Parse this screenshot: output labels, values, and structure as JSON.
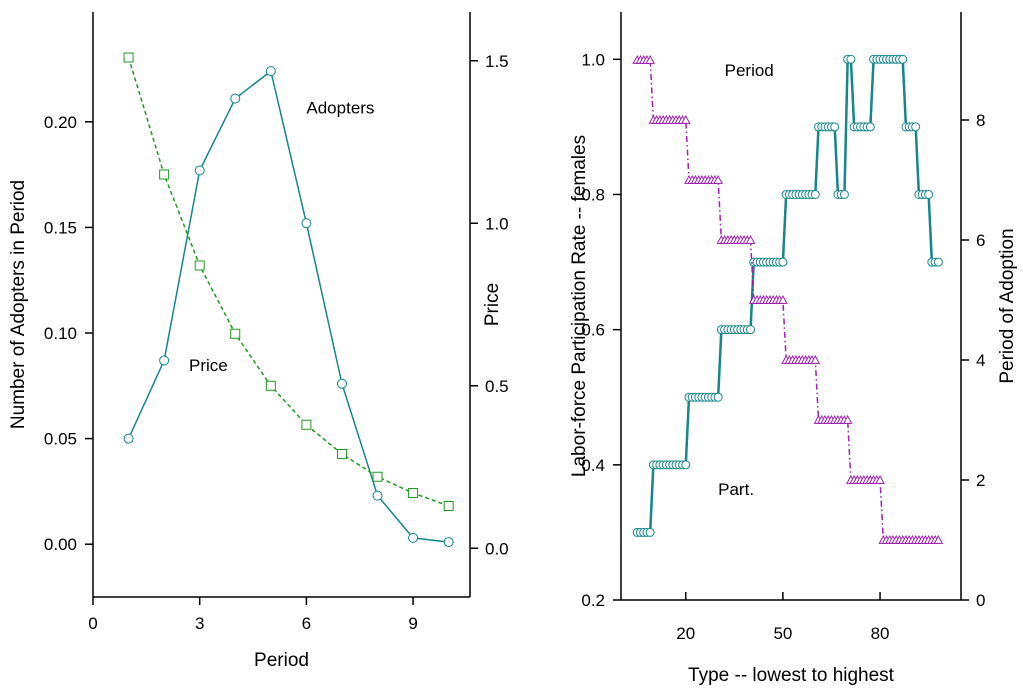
{
  "chart_data": [
    {
      "type": "line",
      "xlabel": "Period",
      "ylabel_left": "Number of Adopters in Period",
      "ylabel_right": "Price",
      "xlim": [
        0,
        10.6
      ],
      "x_ticks": [
        0,
        3,
        6,
        9
      ],
      "ylim_left": [
        -0.025,
        0.252
      ],
      "yticks_left": [
        "0.00",
        "0.05",
        "0.10",
        "0.15",
        "0.20"
      ],
      "ylim_right": [
        -0.15,
        1.65
      ],
      "yticks_right": [
        "0.0",
        "0.5",
        "1.0",
        "1.5"
      ],
      "series": [
        {
          "name": "Adopters",
          "axis": "left",
          "color": "#16868b",
          "style": "solid",
          "marker": "circle",
          "x": [
            1,
            2,
            3,
            4,
            5,
            6,
            7,
            8,
            9,
            10
          ],
          "values": [
            0.05,
            0.087,
            0.177,
            0.211,
            0.224,
            0.152,
            0.076,
            0.023,
            0.003,
            0.001
          ]
        },
        {
          "name": "Price",
          "axis": "right",
          "color": "#1f9a1f",
          "style": "dashed",
          "marker": "square",
          "x": [
            1,
            2,
            3,
            4,
            5,
            6,
            7,
            8,
            9,
            10
          ],
          "values": [
            1.51,
            1.15,
            0.87,
            0.66,
            0.5,
            0.38,
            0.29,
            0.22,
            0.17,
            0.13
          ]
        }
      ],
      "annotations": [
        {
          "text": "Adopters",
          "x": 6.0,
          "y_left": 0.204
        },
        {
          "text": "Price",
          "x": 2.7,
          "y_left": 0.082
        }
      ]
    },
    {
      "type": "line",
      "xlabel": "Type -- lowest to highest",
      "ylabel_left": "Labor-force Participation Rate -- females",
      "ylabel_right": "Period of Adoption",
      "xlim": [
        0,
        105
      ],
      "x_ticks": [
        20,
        50,
        80
      ],
      "ylim_left": [
        0.2,
        1.07
      ],
      "yticks_left": [
        "0.2",
        "0.4",
        "0.6",
        "0.8",
        "1.0"
      ],
      "ylim_right": [
        0,
        9.8
      ],
      "yticks_right": [
        "0",
        "2",
        "4",
        "6",
        "8"
      ],
      "series": [
        {
          "name": "Part.",
          "axis": "left",
          "color": "#16868b",
          "style": "solid",
          "marker": "circle",
          "x": [
            5,
            6,
            7,
            8,
            9,
            10,
            11,
            12,
            13,
            14,
            15,
            16,
            17,
            18,
            19,
            20,
            21,
            22,
            23,
            24,
            25,
            26,
            27,
            28,
            29,
            30,
            31,
            32,
            33,
            34,
            35,
            36,
            37,
            38,
            39,
            40,
            41,
            42,
            43,
            44,
            45,
            46,
            47,
            48,
            49,
            50,
            51,
            52,
            53,
            54,
            55,
            56,
            57,
            58,
            59,
            60,
            61,
            62,
            63,
            64,
            65,
            66,
            67,
            68,
            69,
            70,
            71,
            72,
            73,
            74,
            75,
            76,
            77,
            78,
            79,
            80,
            81,
            82,
            83,
            84,
            85,
            86,
            87,
            88,
            89,
            90,
            91,
            92,
            93,
            94,
            95,
            96,
            97,
            98
          ],
          "values": [
            0.3,
            0.3,
            0.3,
            0.3,
            0.3,
            0.4,
            0.4,
            0.4,
            0.4,
            0.4,
            0.4,
            0.4,
            0.4,
            0.4,
            0.4,
            0.4,
            0.5,
            0.5,
            0.5,
            0.5,
            0.5,
            0.5,
            0.5,
            0.5,
            0.5,
            0.5,
            0.6,
            0.6,
            0.6,
            0.6,
            0.6,
            0.6,
            0.6,
            0.6,
            0.6,
            0.6,
            0.7,
            0.7,
            0.7,
            0.7,
            0.7,
            0.7,
            0.7,
            0.7,
            0.7,
            0.7,
            0.8,
            0.8,
            0.8,
            0.8,
            0.8,
            0.8,
            0.8,
            0.8,
            0.8,
            0.8,
            0.9,
            0.9,
            0.9,
            0.9,
            0.9,
            0.9,
            0.8,
            0.8,
            0.8,
            1.0,
            1.0,
            0.9,
            0.9,
            0.9,
            0.9,
            0.9,
            0.9,
            1.0,
            1.0,
            1.0,
            1.0,
            1.0,
            1.0,
            1.0,
            1.0,
            1.0,
            1.0,
            0.9,
            0.9,
            0.9,
            0.9,
            0.8,
            0.8,
            0.8,
            0.8,
            0.7,
            0.7,
            0.7
          ]
        },
        {
          "name": "Period",
          "axis": "right",
          "color": "#a020b0",
          "style": "dashdot",
          "marker": "triangle",
          "x": [
            5,
            6,
            7,
            8,
            9,
            10,
            11,
            12,
            13,
            14,
            15,
            16,
            17,
            18,
            19,
            20,
            21,
            22,
            23,
            24,
            25,
            26,
            27,
            28,
            29,
            30,
            31,
            32,
            33,
            34,
            35,
            36,
            37,
            38,
            39,
            40,
            41,
            42,
            43,
            44,
            45,
            46,
            47,
            48,
            49,
            50,
            51,
            52,
            53,
            54,
            55,
            56,
            57,
            58,
            59,
            60,
            61,
            62,
            63,
            64,
            65,
            66,
            67,
            68,
            69,
            70,
            71,
            72,
            73,
            74,
            75,
            76,
            77,
            78,
            79,
            80,
            81,
            82,
            83,
            84,
            85,
            86,
            87,
            88,
            89,
            90,
            91,
            92,
            93,
            94,
            95,
            96,
            97,
            98
          ],
          "values": [
            9,
            9,
            9,
            9,
            9,
            8,
            8,
            8,
            8,
            8,
            8,
            8,
            8,
            8,
            8,
            8,
            7,
            7,
            7,
            7,
            7,
            7,
            7,
            7,
            7,
            7,
            6,
            6,
            6,
            6,
            6,
            6,
            6,
            6,
            6,
            6,
            5,
            5,
            5,
            5,
            5,
            5,
            5,
            5,
            5,
            5,
            4,
            4,
            4,
            4,
            4,
            4,
            4,
            4,
            4,
            4,
            3,
            3,
            3,
            3,
            3,
            3,
            3,
            3,
            3,
            3,
            2,
            2,
            2,
            2,
            2,
            2,
            2,
            2,
            2,
            2,
            1,
            1,
            1,
            1,
            1,
            1,
            1,
            1,
            1,
            1,
            1,
            1,
            1,
            1,
            1,
            1,
            1,
            1
          ]
        }
      ],
      "annotations": [
        {
          "text": "Period",
          "x": 32,
          "y_left": 0.975
        },
        {
          "text": "Part.",
          "x": 30,
          "y_left": 0.355
        }
      ]
    }
  ]
}
